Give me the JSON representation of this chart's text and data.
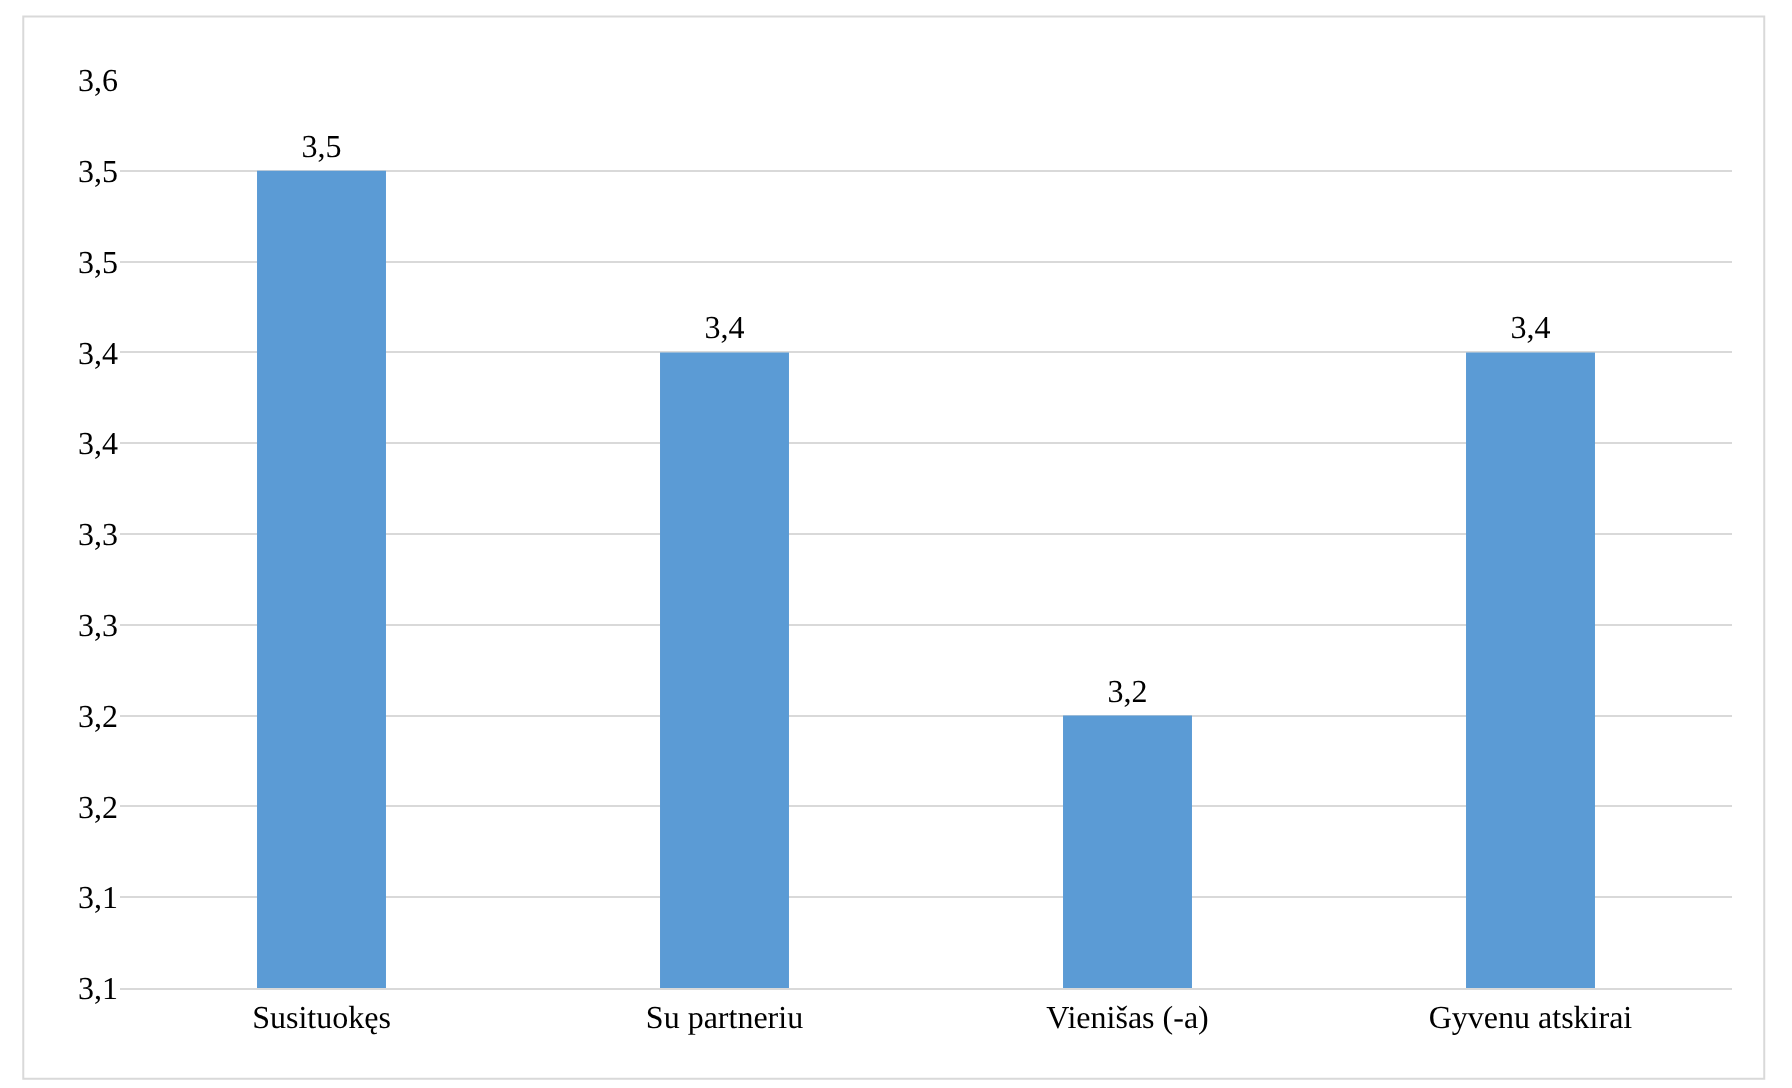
{
  "chart_data": {
    "type": "bar",
    "categories": [
      "Susituokęs",
      "Su partneriu",
      "Vienišas (-a)",
      "Gyvenu atskirai"
    ],
    "values": [
      3.5,
      3.4,
      3.2,
      3.4
    ],
    "value_labels": [
      "3,5",
      "3,4",
      "3,2",
      "3,4"
    ],
    "color": "#5b9bd5",
    "ylim": [
      3.05,
      3.55
    ],
    "yticks": [
      {
        "value": 3.05,
        "label": "3,1"
      },
      {
        "value": 3.1,
        "label": "3,1"
      },
      {
        "value": 3.15,
        "label": "3,2"
      },
      {
        "value": 3.2,
        "label": "3,2"
      },
      {
        "value": 3.25,
        "label": "3,3"
      },
      {
        "value": 3.3,
        "label": "3,3"
      },
      {
        "value": 3.35,
        "label": "3,4"
      },
      {
        "value": 3.4,
        "label": "3,4"
      },
      {
        "value": 3.45,
        "label": "3,5"
      },
      {
        "value": 3.5,
        "label": "3,5"
      },
      {
        "value": 3.55,
        "label": "3,6"
      }
    ],
    "grid": "y"
  }
}
